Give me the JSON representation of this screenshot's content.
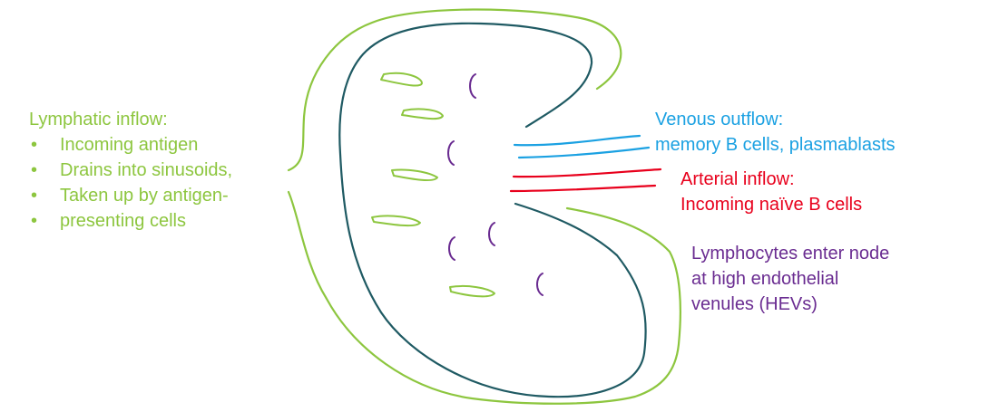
{
  "colors": {
    "lymph": "#8dc63f",
    "venous": "#1ba1e2",
    "arterial": "#e8001c",
    "hev": "#6a2c91",
    "node": "#1f5a63"
  },
  "lymphatic": {
    "title": "Lymphatic inflow:",
    "items": [
      "Incoming antigen",
      "Drains into sinusoids,",
      "Taken up by antigen-",
      "presenting cells"
    ]
  },
  "venous": {
    "title": "Venous outflow:",
    "detail": "memory B cells, plasmablasts"
  },
  "arterial": {
    "title": "Arterial inflow:",
    "detail": "Incoming naïve B cells"
  },
  "hev": {
    "lines": [
      "Lymphocytes enter node",
      "at high endothelial",
      "venules (HEVs)"
    ]
  }
}
